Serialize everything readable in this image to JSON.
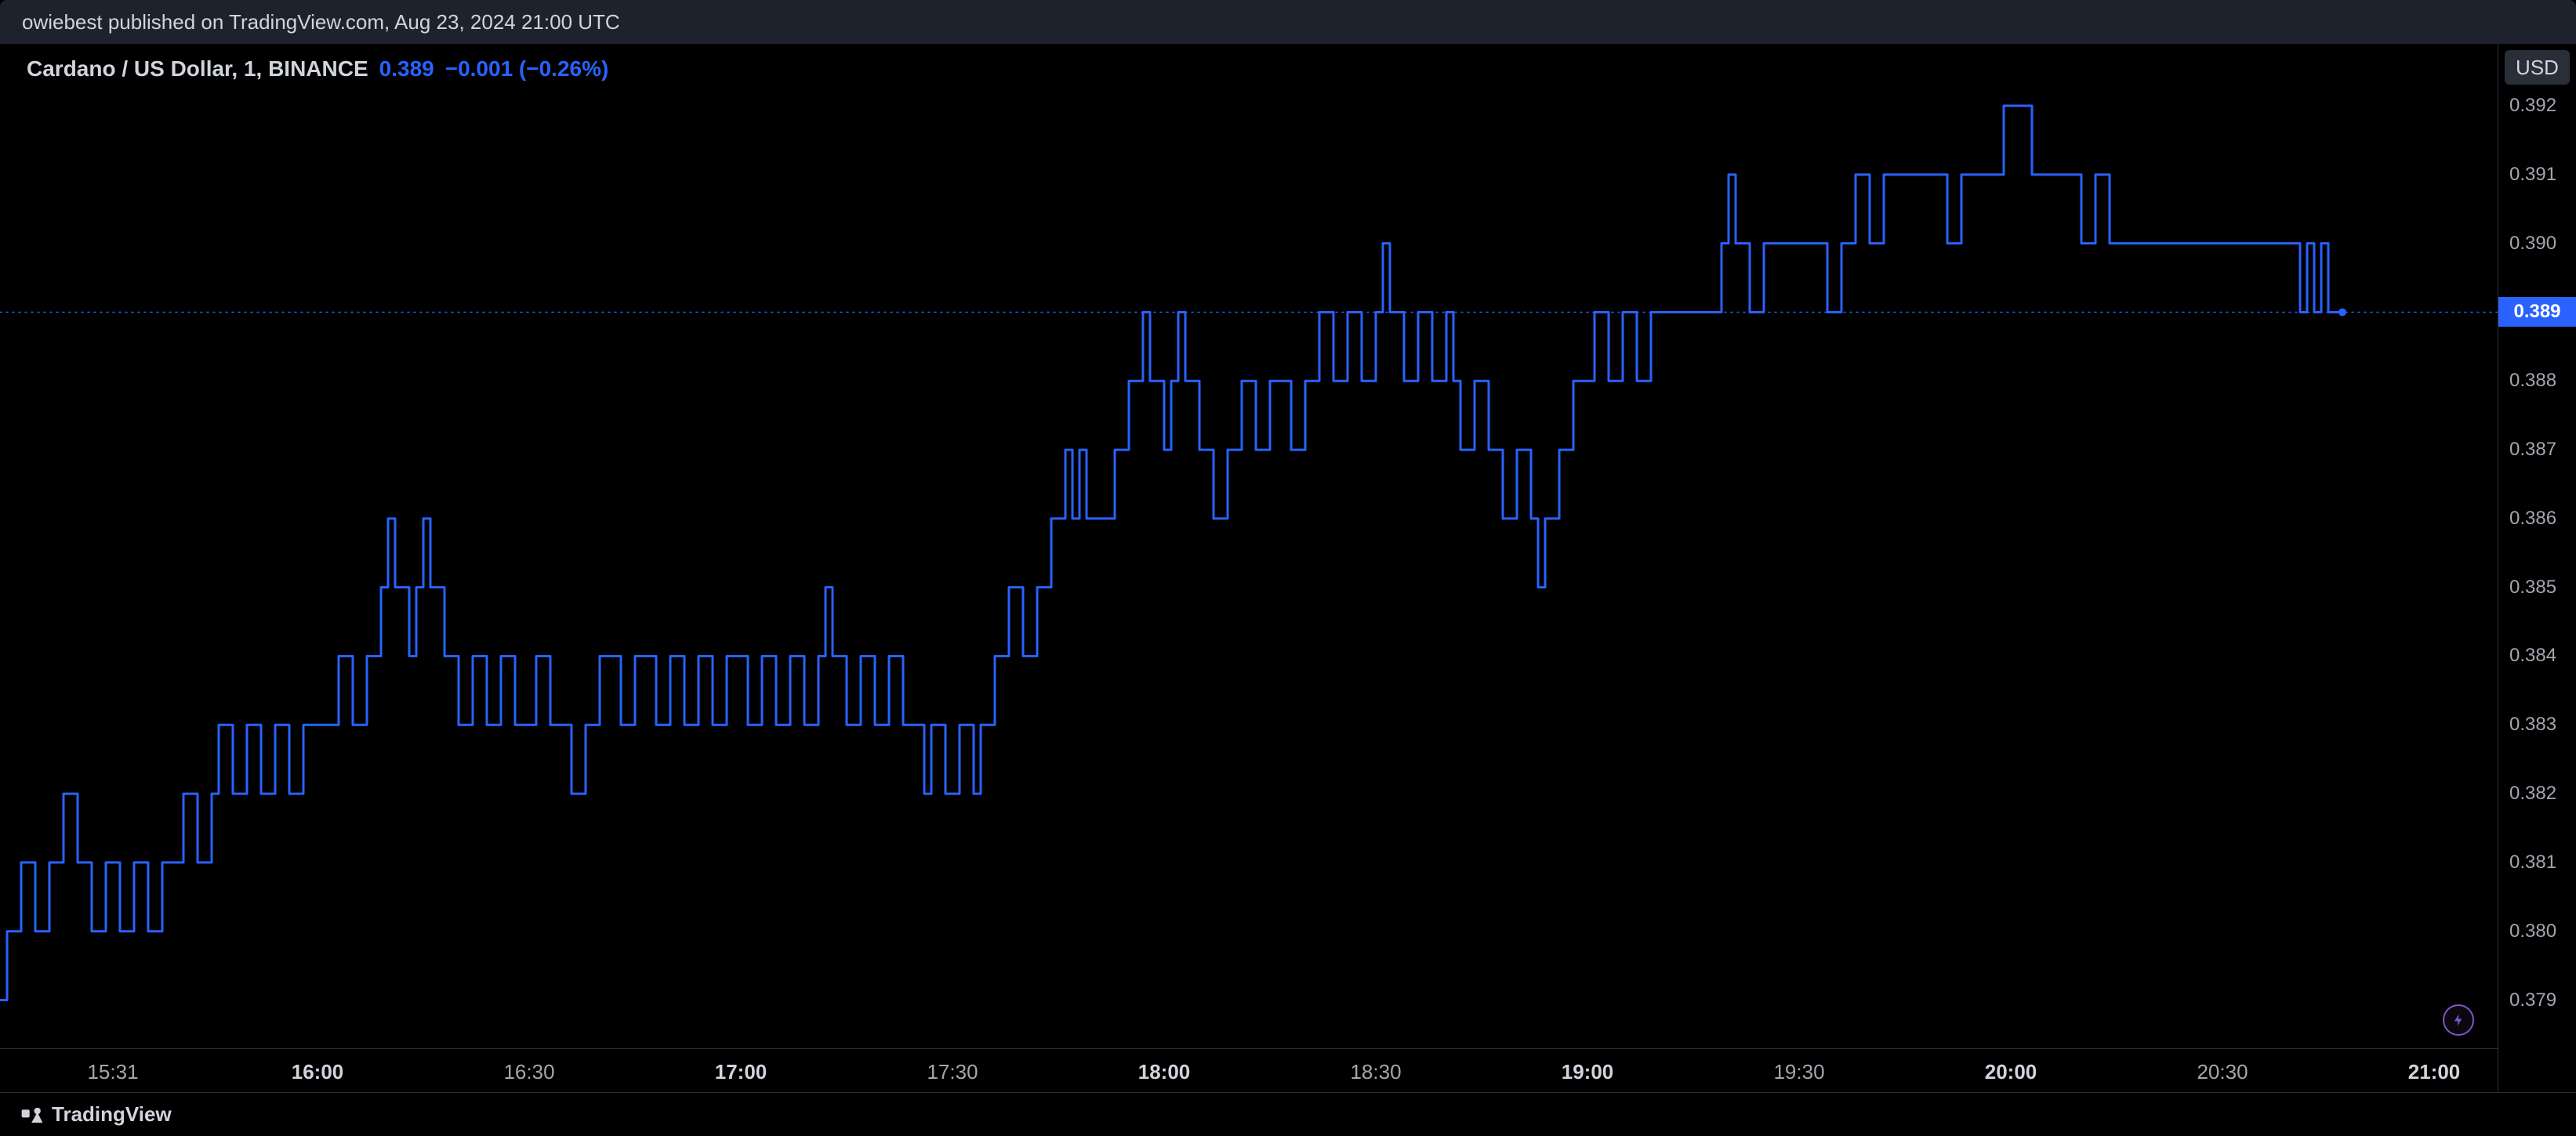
{
  "header": {
    "text": "owiebest published on TradingView.com, Aug 23, 2024 21:00 UTC"
  },
  "legend": {
    "symbol": "Cardano / US Dollar, 1, BINANCE",
    "price": "0.389",
    "change": "−0.001 (−0.26%)"
  },
  "footer": {
    "brand": "TradingView"
  },
  "chart": {
    "type": "line-step",
    "background_color": "#000000",
    "line_color": "#2962ff",
    "line_width": 3,
    "marker_color": "#2962ff",
    "price_line_color": "#2962ff",
    "grid_color": "#2a2e39",
    "text_color": "#a3a6af",
    "currency": "USD",
    "x_axis": {
      "t_min": 0,
      "t_max": 354,
      "ticks": [
        {
          "t": 16,
          "label": "15:31",
          "bold": false
        },
        {
          "t": 45,
          "label": "16:00",
          "bold": true
        },
        {
          "t": 75,
          "label": "16:30",
          "bold": false
        },
        {
          "t": 105,
          "label": "17:00",
          "bold": true
        },
        {
          "t": 135,
          "label": "17:30",
          "bold": false
        },
        {
          "t": 165,
          "label": "18:00",
          "bold": true
        },
        {
          "t": 195,
          "label": "18:30",
          "bold": false
        },
        {
          "t": 225,
          "label": "19:00",
          "bold": true
        },
        {
          "t": 255,
          "label": "19:30",
          "bold": false
        },
        {
          "t": 285,
          "label": "20:00",
          "bold": true
        },
        {
          "t": 315,
          "label": "20:30",
          "bold": false
        },
        {
          "t": 345,
          "label": "21:00",
          "bold": true
        }
      ]
    },
    "y_axis": {
      "min": 0.3783,
      "max": 0.3929,
      "ticks": [
        {
          "v": 0.379,
          "label": "0.379"
        },
        {
          "v": 0.38,
          "label": "0.380"
        },
        {
          "v": 0.381,
          "label": "0.381"
        },
        {
          "v": 0.382,
          "label": "0.382"
        },
        {
          "v": 0.383,
          "label": "0.383"
        },
        {
          "v": 0.384,
          "label": "0.384"
        },
        {
          "v": 0.385,
          "label": "0.385"
        },
        {
          "v": 0.386,
          "label": "0.386"
        },
        {
          "v": 0.387,
          "label": "0.387"
        },
        {
          "v": 0.388,
          "label": "0.388"
        },
        {
          "v": 0.389,
          "label": "0.389"
        },
        {
          "v": 0.39,
          "label": "0.390"
        },
        {
          "v": 0.391,
          "label": "0.391"
        },
        {
          "v": 0.392,
          "label": "0.392"
        }
      ],
      "current": {
        "v": 0.389,
        "label": "0.389"
      }
    },
    "series": [
      [
        0,
        0.379
      ],
      [
        1,
        0.38
      ],
      [
        2,
        0.38
      ],
      [
        3,
        0.381
      ],
      [
        4,
        0.381
      ],
      [
        5,
        0.38
      ],
      [
        6,
        0.38
      ],
      [
        7,
        0.381
      ],
      [
        8,
        0.381
      ],
      [
        9,
        0.382
      ],
      [
        10,
        0.382
      ],
      [
        11,
        0.381
      ],
      [
        12,
        0.381
      ],
      [
        13,
        0.38
      ],
      [
        14,
        0.38
      ],
      [
        15,
        0.381
      ],
      [
        16,
        0.381
      ],
      [
        17,
        0.38
      ],
      [
        18,
        0.38
      ],
      [
        19,
        0.381
      ],
      [
        20,
        0.381
      ],
      [
        21,
        0.38
      ],
      [
        22,
        0.38
      ],
      [
        23,
        0.381
      ],
      [
        24,
        0.381
      ],
      [
        25,
        0.381
      ],
      [
        26,
        0.382
      ],
      [
        27,
        0.382
      ],
      [
        28,
        0.381
      ],
      [
        29,
        0.381
      ],
      [
        30,
        0.382
      ],
      [
        31,
        0.383
      ],
      [
        32,
        0.383
      ],
      [
        33,
        0.382
      ],
      [
        34,
        0.382
      ],
      [
        35,
        0.383
      ],
      [
        36,
        0.383
      ],
      [
        37,
        0.382
      ],
      [
        38,
        0.382
      ],
      [
        39,
        0.383
      ],
      [
        40,
        0.383
      ],
      [
        41,
        0.382
      ],
      [
        42,
        0.382
      ],
      [
        43,
        0.383
      ],
      [
        44,
        0.383
      ],
      [
        45,
        0.383
      ],
      [
        46,
        0.383
      ],
      [
        47,
        0.383
      ],
      [
        48,
        0.384
      ],
      [
        49,
        0.384
      ],
      [
        50,
        0.383
      ],
      [
        51,
        0.383
      ],
      [
        52,
        0.384
      ],
      [
        53,
        0.384
      ],
      [
        54,
        0.385
      ],
      [
        55,
        0.386
      ],
      [
        56,
        0.385
      ],
      [
        57,
        0.385
      ],
      [
        58,
        0.384
      ],
      [
        59,
        0.385
      ],
      [
        60,
        0.386
      ],
      [
        61,
        0.385
      ],
      [
        62,
        0.385
      ],
      [
        63,
        0.384
      ],
      [
        64,
        0.384
      ],
      [
        65,
        0.383
      ],
      [
        66,
        0.383
      ],
      [
        67,
        0.384
      ],
      [
        68,
        0.384
      ],
      [
        69,
        0.383
      ],
      [
        70,
        0.383
      ],
      [
        71,
        0.384
      ],
      [
        72,
        0.384
      ],
      [
        73,
        0.383
      ],
      [
        74,
        0.383
      ],
      [
        75,
        0.383
      ],
      [
        76,
        0.384
      ],
      [
        77,
        0.384
      ],
      [
        78,
        0.383
      ],
      [
        79,
        0.383
      ],
      [
        80,
        0.383
      ],
      [
        81,
        0.382
      ],
      [
        82,
        0.382
      ],
      [
        83,
        0.383
      ],
      [
        84,
        0.383
      ],
      [
        85,
        0.384
      ],
      [
        86,
        0.384
      ],
      [
        87,
        0.384
      ],
      [
        88,
        0.383
      ],
      [
        89,
        0.383
      ],
      [
        90,
        0.384
      ],
      [
        91,
        0.384
      ],
      [
        92,
        0.384
      ],
      [
        93,
        0.383
      ],
      [
        94,
        0.383
      ],
      [
        95,
        0.384
      ],
      [
        96,
        0.384
      ],
      [
        97,
        0.383
      ],
      [
        98,
        0.383
      ],
      [
        99,
        0.384
      ],
      [
        100,
        0.384
      ],
      [
        101,
        0.383
      ],
      [
        102,
        0.383
      ],
      [
        103,
        0.384
      ],
      [
        104,
        0.384
      ],
      [
        105,
        0.384
      ],
      [
        106,
        0.383
      ],
      [
        107,
        0.383
      ],
      [
        108,
        0.384
      ],
      [
        109,
        0.384
      ],
      [
        110,
        0.383
      ],
      [
        111,
        0.383
      ],
      [
        112,
        0.384
      ],
      [
        113,
        0.384
      ],
      [
        114,
        0.383
      ],
      [
        115,
        0.383
      ],
      [
        116,
        0.384
      ],
      [
        117,
        0.385
      ],
      [
        118,
        0.384
      ],
      [
        119,
        0.384
      ],
      [
        120,
        0.383
      ],
      [
        121,
        0.383
      ],
      [
        122,
        0.384
      ],
      [
        123,
        0.384
      ],
      [
        124,
        0.383
      ],
      [
        125,
        0.383
      ],
      [
        126,
        0.384
      ],
      [
        127,
        0.384
      ],
      [
        128,
        0.383
      ],
      [
        129,
        0.383
      ],
      [
        130,
        0.383
      ],
      [
        131,
        0.382
      ],
      [
        132,
        0.383
      ],
      [
        133,
        0.383
      ],
      [
        134,
        0.382
      ],
      [
        135,
        0.382
      ],
      [
        136,
        0.383
      ],
      [
        137,
        0.383
      ],
      [
        138,
        0.382
      ],
      [
        139,
        0.383
      ],
      [
        140,
        0.383
      ],
      [
        141,
        0.384
      ],
      [
        142,
        0.384
      ],
      [
        143,
        0.385
      ],
      [
        144,
        0.385
      ],
      [
        145,
        0.384
      ],
      [
        146,
        0.384
      ],
      [
        147,
        0.385
      ],
      [
        148,
        0.385
      ],
      [
        149,
        0.386
      ],
      [
        150,
        0.386
      ],
      [
        151,
        0.387
      ],
      [
        152,
        0.386
      ],
      [
        153,
        0.387
      ],
      [
        154,
        0.386
      ],
      [
        155,
        0.386
      ],
      [
        156,
        0.386
      ],
      [
        157,
        0.386
      ],
      [
        158,
        0.387
      ],
      [
        159,
        0.387
      ],
      [
        160,
        0.388
      ],
      [
        161,
        0.388
      ],
      [
        162,
        0.389
      ],
      [
        163,
        0.388
      ],
      [
        164,
        0.388
      ],
      [
        165,
        0.387
      ],
      [
        166,
        0.388
      ],
      [
        167,
        0.389
      ],
      [
        168,
        0.388
      ],
      [
        169,
        0.388
      ],
      [
        170,
        0.387
      ],
      [
        171,
        0.387
      ],
      [
        172,
        0.386
      ],
      [
        173,
        0.386
      ],
      [
        174,
        0.387
      ],
      [
        175,
        0.387
      ],
      [
        176,
        0.388
      ],
      [
        177,
        0.388
      ],
      [
        178,
        0.387
      ],
      [
        179,
        0.387
      ],
      [
        180,
        0.388
      ],
      [
        181,
        0.388
      ],
      [
        182,
        0.388
      ],
      [
        183,
        0.387
      ],
      [
        184,
        0.387
      ],
      [
        185,
        0.388
      ],
      [
        186,
        0.388
      ],
      [
        187,
        0.389
      ],
      [
        188,
        0.389
      ],
      [
        189,
        0.388
      ],
      [
        190,
        0.388
      ],
      [
        191,
        0.389
      ],
      [
        192,
        0.389
      ],
      [
        193,
        0.388
      ],
      [
        194,
        0.388
      ],
      [
        195,
        0.389
      ],
      [
        196,
        0.39
      ],
      [
        197,
        0.389
      ],
      [
        198,
        0.389
      ],
      [
        199,
        0.388
      ],
      [
        200,
        0.388
      ],
      [
        201,
        0.389
      ],
      [
        202,
        0.389
      ],
      [
        203,
        0.388
      ],
      [
        204,
        0.388
      ],
      [
        205,
        0.389
      ],
      [
        206,
        0.388
      ],
      [
        207,
        0.387
      ],
      [
        208,
        0.387
      ],
      [
        209,
        0.388
      ],
      [
        210,
        0.388
      ],
      [
        211,
        0.387
      ],
      [
        212,
        0.387
      ],
      [
        213,
        0.386
      ],
      [
        214,
        0.386
      ],
      [
        215,
        0.387
      ],
      [
        216,
        0.387
      ],
      [
        217,
        0.386
      ],
      [
        218,
        0.385
      ],
      [
        219,
        0.386
      ],
      [
        220,
        0.386
      ],
      [
        221,
        0.387
      ],
      [
        222,
        0.387
      ],
      [
        223,
        0.388
      ],
      [
        224,
        0.388
      ],
      [
        225,
        0.388
      ],
      [
        226,
        0.389
      ],
      [
        227,
        0.389
      ],
      [
        228,
        0.388
      ],
      [
        229,
        0.388
      ],
      [
        230,
        0.389
      ],
      [
        231,
        0.389
      ],
      [
        232,
        0.388
      ],
      [
        233,
        0.388
      ],
      [
        234,
        0.389
      ],
      [
        235,
        0.389
      ],
      [
        236,
        0.389
      ],
      [
        237,
        0.389
      ],
      [
        238,
        0.389
      ],
      [
        239,
        0.389
      ],
      [
        240,
        0.389
      ],
      [
        241,
        0.389
      ],
      [
        242,
        0.389
      ],
      [
        243,
        0.389
      ],
      [
        244,
        0.39
      ],
      [
        245,
        0.391
      ],
      [
        246,
        0.39
      ],
      [
        247,
        0.39
      ],
      [
        248,
        0.389
      ],
      [
        249,
        0.389
      ],
      [
        250,
        0.39
      ],
      [
        251,
        0.39
      ],
      [
        252,
        0.39
      ],
      [
        253,
        0.39
      ],
      [
        254,
        0.39
      ],
      [
        255,
        0.39
      ],
      [
        256,
        0.39
      ],
      [
        257,
        0.39
      ],
      [
        258,
        0.39
      ],
      [
        259,
        0.389
      ],
      [
        260,
        0.389
      ],
      [
        261,
        0.39
      ],
      [
        262,
        0.39
      ],
      [
        263,
        0.391
      ],
      [
        264,
        0.391
      ],
      [
        265,
        0.39
      ],
      [
        266,
        0.39
      ],
      [
        267,
        0.391
      ],
      [
        268,
        0.391
      ],
      [
        269,
        0.391
      ],
      [
        270,
        0.391
      ],
      [
        271,
        0.391
      ],
      [
        272,
        0.391
      ],
      [
        273,
        0.391
      ],
      [
        274,
        0.391
      ],
      [
        275,
        0.391
      ],
      [
        276,
        0.39
      ],
      [
        277,
        0.39
      ],
      [
        278,
        0.391
      ],
      [
        279,
        0.391
      ],
      [
        280,
        0.391
      ],
      [
        281,
        0.391
      ],
      [
        282,
        0.391
      ],
      [
        283,
        0.391
      ],
      [
        284,
        0.392
      ],
      [
        285,
        0.392
      ],
      [
        286,
        0.392
      ],
      [
        287,
        0.392
      ],
      [
        288,
        0.391
      ],
      [
        289,
        0.391
      ],
      [
        290,
        0.391
      ],
      [
        291,
        0.391
      ],
      [
        292,
        0.391
      ],
      [
        293,
        0.391
      ],
      [
        294,
        0.391
      ],
      [
        295,
        0.39
      ],
      [
        296,
        0.39
      ],
      [
        297,
        0.391
      ],
      [
        298,
        0.391
      ],
      [
        299,
        0.39
      ],
      [
        300,
        0.39
      ],
      [
        301,
        0.39
      ],
      [
        302,
        0.39
      ],
      [
        303,
        0.39
      ],
      [
        304,
        0.39
      ],
      [
        305,
        0.39
      ],
      [
        306,
        0.39
      ],
      [
        307,
        0.39
      ],
      [
        308,
        0.39
      ],
      [
        309,
        0.39
      ],
      [
        310,
        0.39
      ],
      [
        311,
        0.39
      ],
      [
        312,
        0.39
      ],
      [
        313,
        0.39
      ],
      [
        314,
        0.39
      ],
      [
        315,
        0.39
      ],
      [
        316,
        0.39
      ],
      [
        317,
        0.39
      ],
      [
        318,
        0.39
      ],
      [
        319,
        0.39
      ],
      [
        320,
        0.39
      ],
      [
        321,
        0.39
      ],
      [
        322,
        0.39
      ],
      [
        323,
        0.39
      ],
      [
        324,
        0.39
      ],
      [
        325,
        0.39
      ],
      [
        326,
        0.389
      ],
      [
        327,
        0.39
      ],
      [
        328,
        0.389
      ],
      [
        329,
        0.39
      ],
      [
        330,
        0.389
      ],
      [
        331,
        0.389
      ],
      [
        332,
        0.389
      ]
    ]
  }
}
